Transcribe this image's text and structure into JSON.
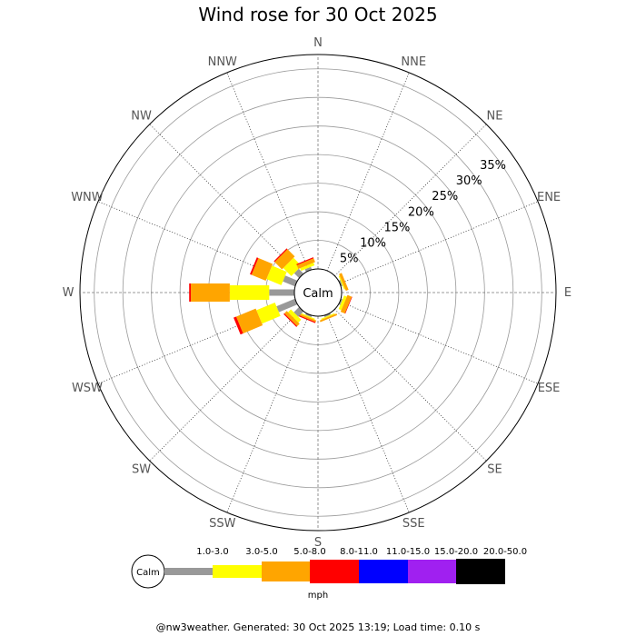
{
  "title": "Wind rose for 30 Oct 2025",
  "footer": "@nw3weather. Generated: 30 Oct 2025 13:19; Load time: 0.10 s",
  "calm_label": "Calm",
  "chart_data": {
    "type": "wind-rose",
    "directions": [
      "N",
      "NNE",
      "NE",
      "ENE",
      "E",
      "ESE",
      "SE",
      "SSE",
      "S",
      "SSW",
      "SW",
      "WSW",
      "W",
      "WNW",
      "NW",
      "NNW"
    ],
    "radial_ticks": [
      "5%",
      "10%",
      "15%",
      "20%",
      "25%",
      "30%",
      "35%"
    ],
    "radial_tick_values": [
      5,
      10,
      15,
      20,
      25,
      30,
      35
    ],
    "rmax": 37.5,
    "grid": true,
    "speed_bins": [
      "Calm",
      "1.0-3.0",
      "3.0-5.0",
      "5.0-8.0",
      "8.0-11.0",
      "11.0-15.0",
      "15.0-20.0",
      "20.0-50.0"
    ],
    "bin_colors": [
      "#ffffff",
      "#999999",
      "#ffff00",
      "#ffa500",
      "#ff0000",
      "#0000ff",
      "#a020f0",
      "#000000"
    ],
    "units": "mph",
    "cumulative_percent": {
      "N": [
        0,
        0,
        0,
        0
      ],
      "NNE": [
        0,
        0,
        0,
        0
      ],
      "NE": [
        0,
        0,
        0,
        0
      ],
      "ENE": [
        0.3,
        0.5,
        1.0,
        0
      ],
      "E": [
        0,
        0,
        0,
        0
      ],
      "ESE": [
        0.3,
        0.8,
        1.6,
        1.7
      ],
      "SE": [
        0,
        0,
        0,
        0
      ],
      "SSE": [
        0.3,
        0.5,
        0.8,
        0
      ],
      "S": [
        0,
        0,
        0,
        0
      ],
      "SSW": [
        0.3,
        0.5,
        0.8,
        1.0
      ],
      "SW": [
        1.3,
        2.0,
        2.6,
        2.8
      ],
      "WSW": [
        3.5,
        7.0,
        10.7,
        11.2
      ],
      "W": [
        4.4,
        11.3,
        18.1,
        18.4
      ],
      "WNW": [
        2.3,
        5.1,
        7.8,
        8.1
      ],
      "NW": [
        1.2,
        3.2,
        5.0,
        5.2
      ],
      "NNW": [
        0.5,
        1.0,
        1.7,
        1.9
      ]
    }
  }
}
